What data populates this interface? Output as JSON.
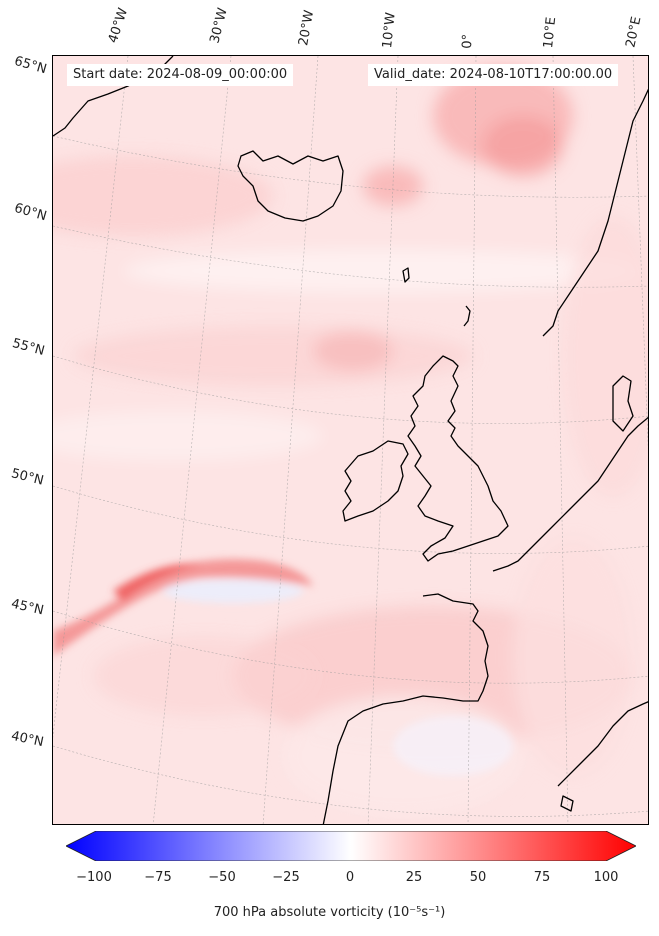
{
  "header": {
    "start_date": "Start date: 2024-08-09_00:00:00",
    "valid_date": "Valid_date: 2024-08-10T17:00:00.00"
  },
  "longitude_labels": [
    "40°W",
    "30°W",
    "20°W",
    "10°W",
    "0°",
    "10°E",
    "20°E"
  ],
  "latitude_labels": [
    "65°N",
    "60°N",
    "55°N",
    "50°N",
    "45°N",
    "40°N"
  ],
  "colorbar": {
    "ticks": [
      "−100",
      "−75",
      "−50",
      "−25",
      "0",
      "25",
      "50",
      "75",
      "100"
    ],
    "label": "700 hPa absolute vorticity (10⁻⁵s⁻¹)",
    "min_color": "#0000ff",
    "mid_color": "#ffffff",
    "max_color": "#ff0000"
  },
  "colors": {
    "background_field": "#fde4e4",
    "coastline": "#000000"
  }
}
